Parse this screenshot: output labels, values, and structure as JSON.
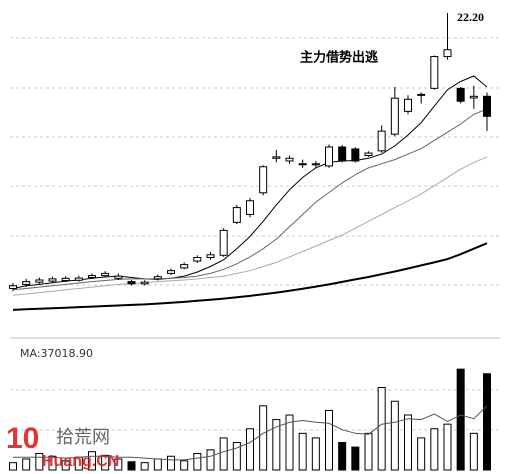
{
  "chart_data": {
    "type": "candlestick",
    "ylim": [
      11,
      22.6
    ],
    "open": [
      12.15,
      12.3,
      12.38,
      12.42,
      12.44,
      12.45,
      12.55,
      12.62,
      12.52,
      12.4,
      12.32,
      12.5,
      12.7,
      12.9,
      13.15,
      13.28,
      13.36,
      14.56,
      14.85,
      15.64,
      16.9,
      16.8,
      16.68,
      16.66,
      16.62,
      17.31,
      17.24,
      17.0,
      17.17,
      17.78,
      18.61,
      19.2,
      19.45,
      20.61,
      19.45,
      19.1,
      19.16
    ],
    "high": [
      12.35,
      12.5,
      12.55,
      12.58,
      12.6,
      12.62,
      12.7,
      12.78,
      12.7,
      12.46,
      12.45,
      12.66,
      12.88,
      13.1,
      13.36,
      13.48,
      14.35,
      15.2,
      15.45,
      16.65,
      17.2,
      17.0,
      16.85,
      16.8,
      17.4,
      17.38,
      17.3,
      17.15,
      18.1,
      19.5,
      19.2,
      19.3,
      20.65,
      22.2,
      19.5,
      19.55,
      19.3
    ],
    "low": [
      12.05,
      12.2,
      12.3,
      12.35,
      12.38,
      12.4,
      12.5,
      12.56,
      12.46,
      12.26,
      12.26,
      12.44,
      12.64,
      12.85,
      13.08,
      13.2,
      13.3,
      14.5,
      14.75,
      15.55,
      16.75,
      16.7,
      16.55,
      16.55,
      16.55,
      16.75,
      16.75,
      16.95,
      17.1,
      17.7,
      18.5,
      18.9,
      19.4,
      20.5,
      18.9,
      18.7,
      17.9
    ],
    "close": [
      12.25,
      12.4,
      12.46,
      12.5,
      12.52,
      12.53,
      12.62,
      12.7,
      12.6,
      12.32,
      12.38,
      12.58,
      12.8,
      13.02,
      13.28,
      13.38,
      14.27,
      15.1,
      15.35,
      16.59,
      16.95,
      16.9,
      16.7,
      16.7,
      17.31,
      16.8,
      16.8,
      17.09,
      17.89,
      19.09,
      19.05,
      19.23,
      20.61,
      20.86,
      18.98,
      19.16,
      18.43
    ],
    "ma_lines": [
      {
        "color": "#000000",
        "values": [
          12.15,
          12.25,
          12.3,
          12.36,
          12.42,
          12.46,
          12.52,
          12.57,
          12.6,
          12.55,
          12.5,
          12.48,
          12.52,
          12.6,
          12.75,
          12.95,
          13.2,
          13.6,
          14.05,
          14.6,
          15.2,
          15.75,
          16.2,
          16.55,
          16.75,
          16.8,
          16.82,
          16.9,
          17.05,
          17.35,
          17.75,
          18.2,
          18.8,
          19.4,
          19.7,
          19.9,
          19.5
        ]
      },
      {
        "color": "#666666",
        "values": [
          12.1,
          12.15,
          12.2,
          12.25,
          12.3,
          12.35,
          12.4,
          12.44,
          12.48,
          12.5,
          12.5,
          12.5,
          12.52,
          12.55,
          12.6,
          12.7,
          12.85,
          13.05,
          13.3,
          13.6,
          13.95,
          14.4,
          14.85,
          15.3,
          15.65,
          16.0,
          16.3,
          16.55,
          16.7,
          16.85,
          17.05,
          17.25,
          17.55,
          17.85,
          18.15,
          18.5,
          18.7
        ]
      },
      {
        "color": "#aaaaaa",
        "values": [
          11.9,
          11.95,
          12.0,
          12.05,
          12.1,
          12.15,
          12.2,
          12.25,
          12.3,
          12.33,
          12.36,
          12.4,
          12.43,
          12.46,
          12.5,
          12.55,
          12.6,
          12.7,
          12.8,
          12.95,
          13.1,
          13.3,
          13.5,
          13.7,
          13.9,
          14.1,
          14.35,
          14.6,
          14.85,
          15.1,
          15.35,
          15.6,
          15.9,
          16.2,
          16.5,
          16.75,
          16.95
        ]
      },
      {
        "color": "#000000",
        "width": 2,
        "values": [
          11.37,
          11.39,
          11.41,
          11.43,
          11.45,
          11.47,
          11.49,
          11.51,
          11.53,
          11.55,
          11.57,
          11.6,
          11.63,
          11.66,
          11.7,
          11.74,
          11.78,
          11.83,
          11.88,
          11.94,
          12.0,
          12.07,
          12.14,
          12.22,
          12.3,
          12.39,
          12.48,
          12.57,
          12.67,
          12.77,
          12.88,
          12.99,
          13.1,
          13.22,
          13.4,
          13.6,
          13.8
        ]
      }
    ],
    "high_label": "22.20",
    "annotation": "主力借势出逃",
    "volume_label": "MA:37018.90",
    "volume_ylim": [
      0,
      120000
    ],
    "volume": [
      8000,
      12000,
      18000,
      15000,
      10000,
      14000,
      20000,
      16000,
      12000,
      9000,
      8000,
      12000,
      15000,
      10000,
      18000,
      22000,
      35000,
      30000,
      45000,
      70000,
      55000,
      60000,
      40000,
      35000,
      65000,
      30000,
      25000,
      40000,
      90000,
      75000,
      60000,
      35000,
      45000,
      50000,
      110000,
      40000,
      105000
    ],
    "volume_ma": [
      14000,
      14000,
      14000,
      14000,
      13000,
      14000,
      15000,
      15000,
      14000,
      14000,
      13000,
      12000,
      11000,
      11000,
      13000,
      15000,
      20000,
      24000,
      30000,
      40000,
      47000,
      52000,
      54000,
      52000,
      51000,
      44000,
      40000,
      39000,
      50000,
      52000,
      56000,
      55000,
      61000,
      53000,
      60000,
      56000,
      70000
    ],
    "watermark": [
      "10",
      "拾荒网",
      "Huang.CN"
    ]
  }
}
